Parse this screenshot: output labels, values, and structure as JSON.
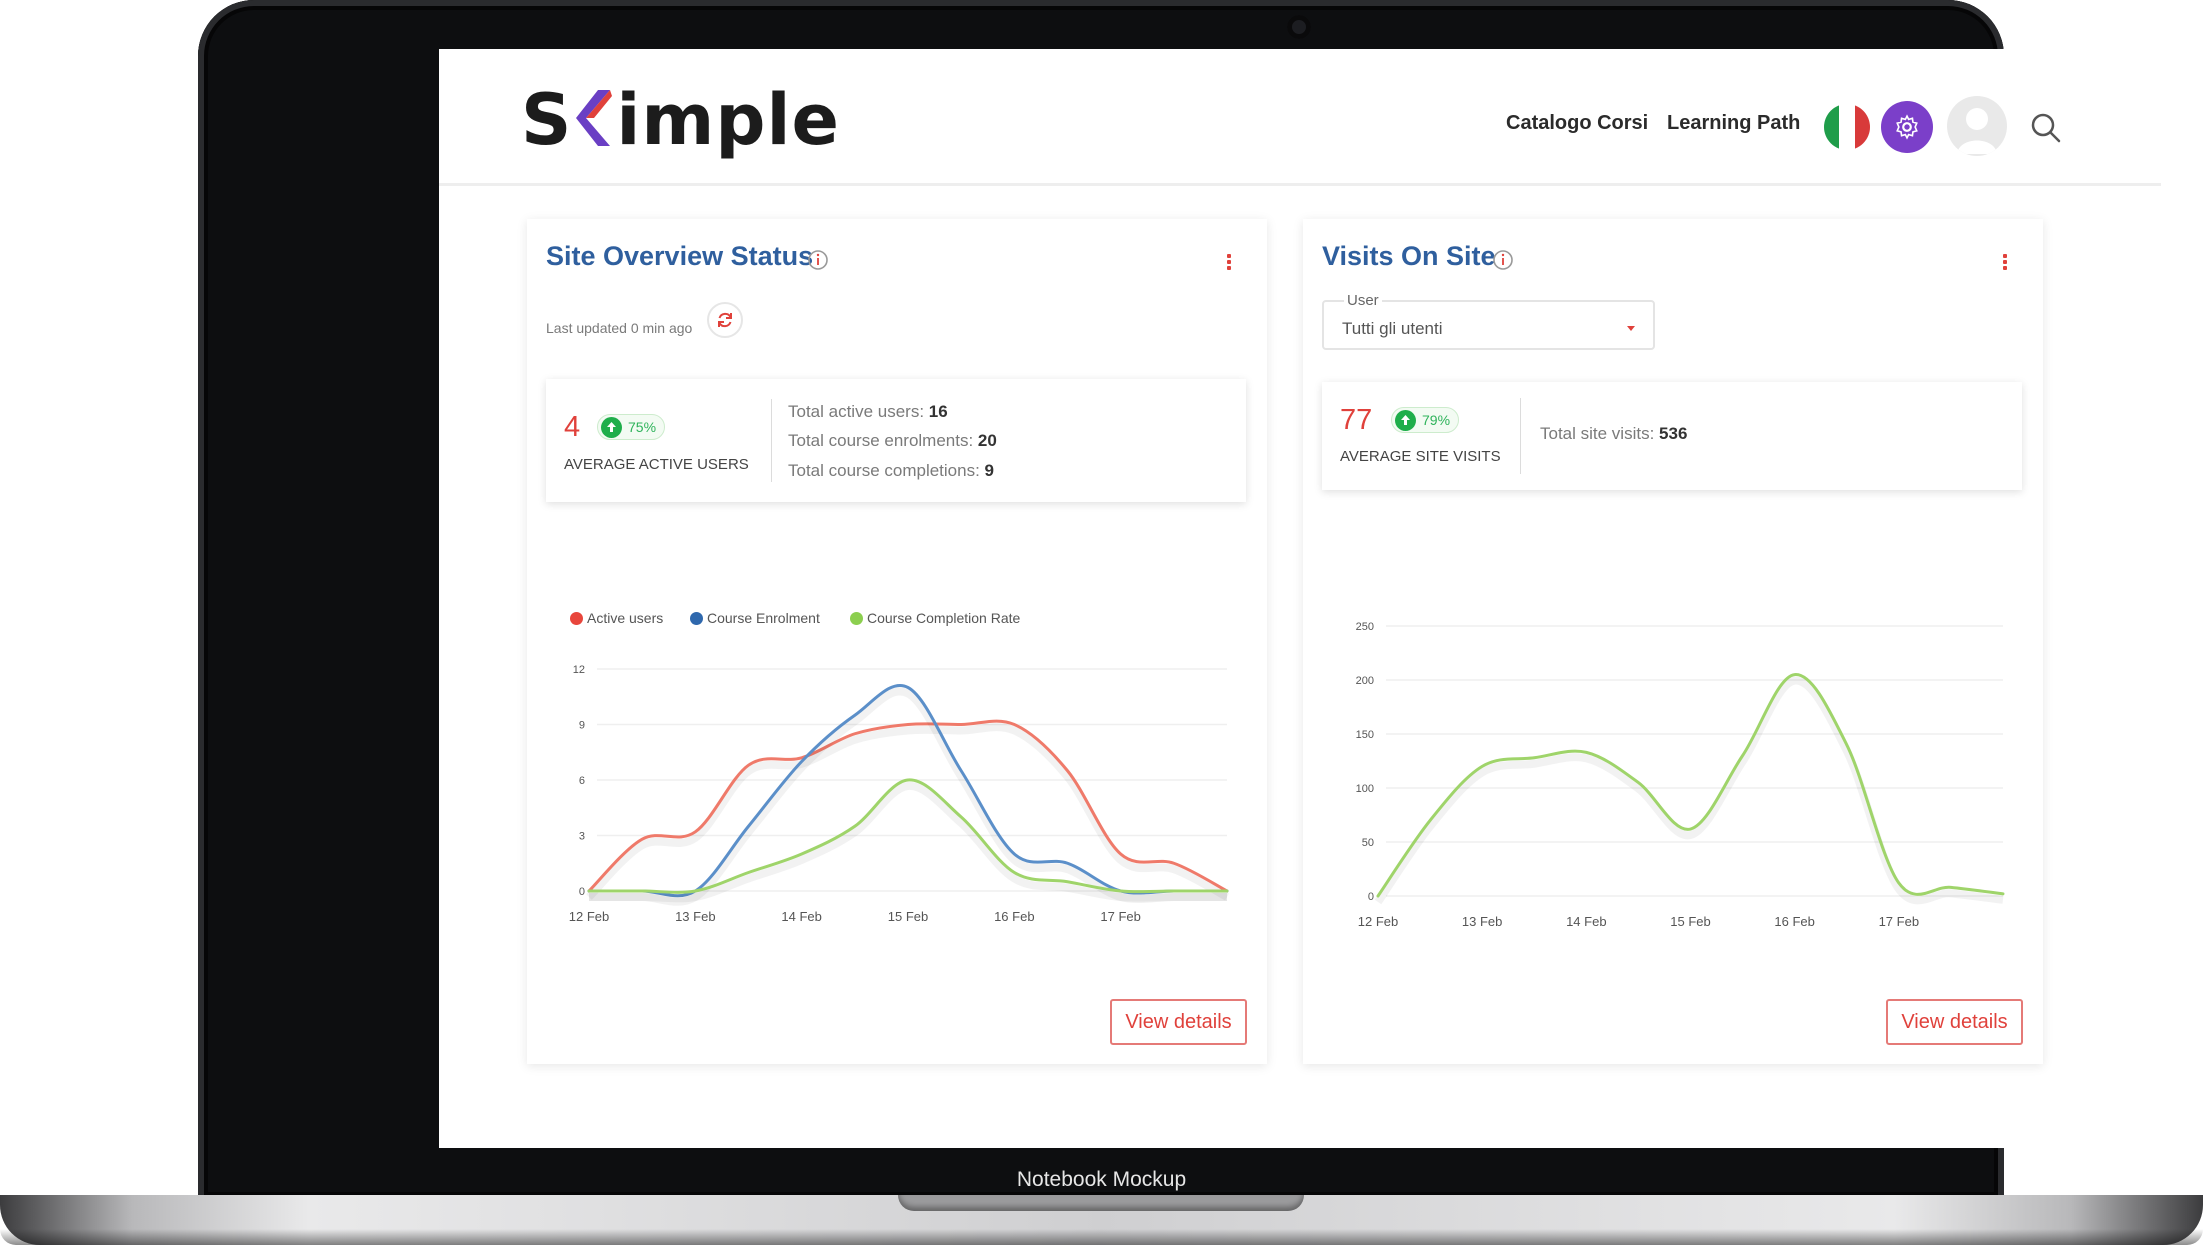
{
  "mockup_label": "Notebook Mockup",
  "header": {
    "logo_prefix": "S",
    "logo_suffix": "imple",
    "nav": [
      "Catalogo Corsi",
      "Learning Path"
    ],
    "icons": [
      "italy-flag-icon",
      "gear-icon",
      "user-avatar-icon",
      "search-icon"
    ],
    "gear_color": "#7b3fc9"
  },
  "overview": {
    "title": "Site Overview Status",
    "last_updated": "Last updated 0 min ago",
    "average_value": "4",
    "average_pct": "75%",
    "average_label": "AVERAGE ACTIVE USERS",
    "details": [
      {
        "label": "Total active users: ",
        "value": "16"
      },
      {
        "label": "Total course enrolments: ",
        "value": "20"
      },
      {
        "label": "Total course completions: ",
        "value": "9"
      }
    ],
    "view_details": "View details"
  },
  "visits": {
    "title": "Visits On Site",
    "select_label": "User",
    "select_value": "Tutti gli utenti",
    "average_value": "77",
    "average_pct": "79%",
    "average_label": "AVERAGE SITE VISITS",
    "total_label": "Total site visits: ",
    "total_value": "536",
    "view_details": "View details"
  },
  "colors": {
    "accent_red": "#e0413b",
    "title_blue": "#2f5f9e",
    "active_users": "#ef7a6a",
    "course_enrolment": "#5b8fc9",
    "course_completion": "#9fd46a"
  },
  "chart_data": [
    {
      "type": "line",
      "x": [
        "12 Feb",
        "12.5",
        "13 Feb",
        "13.5",
        "14 Feb",
        "14.5",
        "15 Feb",
        "15.5",
        "16 Feb",
        "16.5",
        "17 Feb",
        "17.5",
        "18 Feb"
      ],
      "xticks": [
        "12 Feb",
        "13 Feb",
        "14 Feb",
        "15 Feb",
        "16 Feb",
        "17 Feb"
      ],
      "yticks": [
        "0",
        "3",
        "6",
        "9",
        "12"
      ],
      "ylim": [
        0,
        12
      ],
      "legend": [
        "Active users",
        "Course Enrolment",
        "Course Completion Rate"
      ],
      "legend_position": "top-left",
      "series": [
        {
          "name": "Active users",
          "values": [
            0,
            2.8,
            3.2,
            6.8,
            7.2,
            8.5,
            9,
            9,
            9,
            6.5,
            2,
            1.5,
            0
          ]
        },
        {
          "name": "Course Enrolment",
          "values": [
            0,
            0,
            0,
            3.5,
            7,
            9.5,
            11,
            6.5,
            2,
            1.5,
            0,
            0,
            0
          ]
        },
        {
          "name": "Course Completion Rate",
          "values": [
            0,
            0,
            0,
            1,
            2,
            3.5,
            6,
            4,
            1,
            0.5,
            0,
            0,
            0
          ]
        }
      ],
      "grid": true
    },
    {
      "type": "line",
      "x": [
        "12 Feb",
        "12.5",
        "13 Feb",
        "13.5",
        "14 Feb",
        "14.5",
        "15 Feb",
        "15.5",
        "16 Feb",
        "16.5",
        "17 Feb",
        "17.5",
        "18 Feb"
      ],
      "xticks": [
        "12 Feb",
        "13 Feb",
        "14 Feb",
        "15 Feb",
        "16 Feb",
        "17 Feb"
      ],
      "yticks": [
        "0",
        "50",
        "100",
        "150",
        "200",
        "250"
      ],
      "ylim": [
        0,
        250
      ],
      "series": [
        {
          "values": [
            0,
            70,
            120,
            128,
            133,
            105,
            62,
            130,
            205,
            140,
            12,
            8,
            2
          ]
        }
      ],
      "grid": true
    }
  ]
}
